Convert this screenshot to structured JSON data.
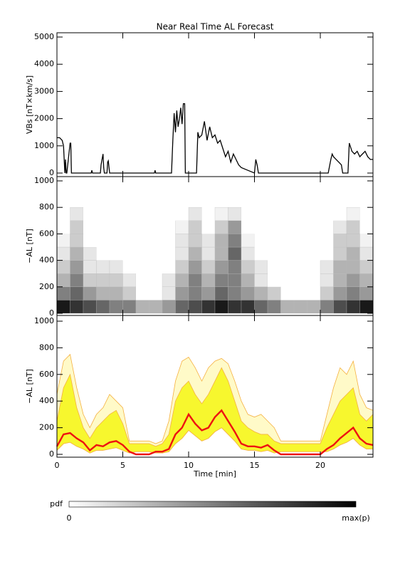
{
  "chart_data": [
    {
      "type": "line",
      "title": "Near Real Time AL Forecast",
      "ylabel": "VBs [nT×km/s]",
      "color": "#000000",
      "xlim": [
        0,
        24
      ],
      "ylim": [
        0,
        5000
      ],
      "yticks": [
        0,
        1000,
        2000,
        3000,
        4000,
        5000
      ],
      "x": [
        0,
        0.2,
        0.4,
        0.5,
        0.6,
        0.65,
        0.7,
        0.75,
        1.0,
        1.05,
        1.1,
        1.15,
        2.6,
        2.65,
        2.7,
        3.3,
        3.35,
        3.5,
        3.55,
        3.6,
        3.8,
        3.85,
        3.9,
        4.0,
        7.4,
        7.45,
        7.5,
        8.7,
        8.8,
        8.9,
        9.0,
        9.1,
        9.2,
        9.3,
        9.4,
        9.5,
        9.6,
        9.7,
        9.75,
        9.8,
        10.6,
        10.7,
        10.8,
        11.0,
        11.2,
        11.4,
        11.6,
        11.8,
        12.0,
        12.2,
        12.4,
        12.6,
        12.8,
        13.0,
        13.2,
        13.4,
        13.6,
        13.8,
        14.0,
        14.5,
        15.0,
        15.1,
        15.2,
        15.3,
        20.6,
        20.8,
        20.9,
        21.0,
        21.2,
        21.4,
        21.6,
        21.7,
        21.8,
        22.1,
        22.2,
        22.4,
        22.6,
        22.8,
        23.0,
        23.2,
        23.4,
        23.6,
        23.8,
        24.0
      ],
      "values": [
        1300,
        1300,
        1200,
        1000,
        0,
        500,
        0,
        0,
        1100,
        1100,
        0,
        0,
        0,
        100,
        0,
        0,
        300,
        700,
        200,
        0,
        0,
        400,
        450,
        0,
        0,
        100,
        0,
        0,
        1200,
        2200,
        1500,
        2300,
        1700,
        2000,
        2400,
        1800,
        2550,
        2550,
        0,
        0,
        0,
        1500,
        1300,
        1400,
        1900,
        1200,
        1700,
        1300,
        1400,
        1100,
        1200,
        900,
        600,
        800,
        400,
        700,
        500,
        300,
        200,
        100,
        0,
        500,
        300,
        0,
        0,
        500,
        700,
        600,
        500,
        400,
        300,
        0,
        0,
        0,
        1100,
        800,
        700,
        800,
        600,
        700,
        800,
        600,
        500,
        500
      ]
    },
    {
      "type": "heatmap",
      "ylabel": "−AL [nT]",
      "xlim": [
        0,
        24
      ],
      "ylim": [
        0,
        1000
      ],
      "yticks": [
        0,
        200,
        400,
        600,
        800,
        1000
      ],
      "xbins": [
        0,
        1,
        2,
        3,
        4,
        5,
        6,
        7,
        8,
        9,
        10,
        11,
        12,
        13,
        14,
        15,
        16,
        17,
        18,
        19,
        20,
        21,
        22,
        23,
        24
      ],
      "ybins": [
        0,
        100,
        200,
        300,
        400,
        500,
        600,
        700,
        800
      ],
      "pdf": [
        [
          0.9,
          0.8,
          0.7,
          0.6,
          0.5,
          0.5,
          0.3,
          0.3,
          0.4,
          0.6,
          0.7,
          0.8,
          0.9,
          0.8,
          0.8,
          0.6,
          0.5,
          0.3,
          0.3,
          0.3,
          0.5,
          0.7,
          0.8,
          0.9
        ],
        [
          0.5,
          0.6,
          0.4,
          0.3,
          0.3,
          0.2,
          0,
          0,
          0.1,
          0.4,
          0.5,
          0.4,
          0.6,
          0.5,
          0.4,
          0.3,
          0.2,
          0,
          0,
          0,
          0.2,
          0.4,
          0.5,
          0.4
        ],
        [
          0.3,
          0.5,
          0.2,
          0.2,
          0.2,
          0.1,
          0,
          0,
          0.1,
          0.3,
          0.5,
          0.3,
          0.5,
          0.5,
          0.3,
          0.1,
          0,
          0,
          0,
          0,
          0.1,
          0.3,
          0.4,
          0.3
        ],
        [
          0.2,
          0.4,
          0.1,
          0.1,
          0.1,
          0,
          0,
          0,
          0,
          0.2,
          0.4,
          0.2,
          0.4,
          0.5,
          0.2,
          0.1,
          0,
          0,
          0,
          0,
          0.1,
          0.3,
          0.3,
          0.2
        ],
        [
          0.1,
          0.3,
          0.1,
          0,
          0,
          0,
          0,
          0,
          0,
          0.1,
          0.3,
          0.1,
          0.3,
          0.6,
          0.1,
          0,
          0,
          0,
          0,
          0,
          0,
          0.2,
          0.3,
          0.1
        ],
        [
          0.05,
          0.2,
          0,
          0,
          0,
          0,
          0,
          0,
          0,
          0.1,
          0.2,
          0.1,
          0.3,
          0.5,
          0.05,
          0,
          0,
          0,
          0,
          0,
          0,
          0.2,
          0.2,
          0.05
        ],
        [
          0,
          0.2,
          0,
          0,
          0,
          0,
          0,
          0,
          0,
          0.05,
          0.2,
          0,
          0.2,
          0.4,
          0,
          0,
          0,
          0,
          0,
          0,
          0,
          0.1,
          0.2,
          0
        ],
        [
          0,
          0.1,
          0,
          0,
          0,
          0,
          0,
          0,
          0,
          0,
          0.1,
          0,
          0.05,
          0.1,
          0,
          0,
          0,
          0,
          0,
          0,
          0,
          0,
          0.05,
          0
        ]
      ],
      "colorbar": {
        "label": "pdf",
        "min_label": "0",
        "max_label": "max(p)"
      }
    },
    {
      "type": "area",
      "ylabel": "−AL [nT]",
      "xlabel": "Time [min]",
      "xlim": [
        0,
        24
      ],
      "ylim": [
        0,
        1000
      ],
      "yticks": [
        0,
        200,
        400,
        600,
        800,
        1000
      ],
      "xticks": [
        0,
        5,
        10,
        15,
        20
      ],
      "x": [
        0,
        0.5,
        1,
        1.5,
        2,
        2.5,
        3,
        3.5,
        4,
        4.5,
        5,
        5.5,
        6,
        6.5,
        7,
        7.5,
        8,
        8.5,
        9,
        9.5,
        10,
        10.5,
        11,
        11.5,
        12,
        12.5,
        13,
        13.5,
        14,
        14.5,
        15,
        15.5,
        16,
        16.5,
        17,
        17.5,
        18,
        18.5,
        19,
        19.5,
        20,
        20.5,
        21,
        21.5,
        22,
        22.5,
        23,
        23.5,
        24
      ],
      "lower": [
        30,
        80,
        90,
        60,
        40,
        10,
        30,
        30,
        40,
        50,
        30,
        10,
        20,
        20,
        20,
        10,
        10,
        20,
        80,
        120,
        180,
        140,
        100,
        120,
        170,
        200,
        150,
        100,
        40,
        30,
        30,
        20,
        30,
        10,
        20,
        20,
        20,
        20,
        20,
        20,
        20,
        20,
        40,
        70,
        90,
        120,
        70,
        40,
        40
      ],
      "series": [
        {
          "color": "#f5b041",
          "fill": "#fffac8",
          "values": [
            450,
            700,
            750,
            500,
            300,
            200,
            300,
            350,
            450,
            400,
            350,
            100,
            100,
            100,
            100,
            80,
            100,
            250,
            550,
            700,
            730,
            650,
            550,
            650,
            700,
            720,
            680,
            550,
            400,
            300,
            280,
            300,
            250,
            200,
            100,
            100,
            100,
            100,
            100,
            100,
            100,
            300,
            500,
            650,
            600,
            700,
            450,
            350,
            330
          ]
        },
        {
          "color": "#f5b041",
          "fill": "#f7f72e",
          "values": [
            250,
            500,
            600,
            350,
            200,
            120,
            200,
            250,
            300,
            330,
            230,
            80,
            80,
            80,
            80,
            60,
            80,
            150,
            400,
            500,
            550,
            450,
            380,
            450,
            550,
            650,
            550,
            400,
            250,
            200,
            170,
            150,
            150,
            100,
            80,
            80,
            80,
            80,
            80,
            80,
            80,
            200,
            300,
            400,
            450,
            500,
            300,
            250,
            300
          ]
        },
        {
          "color": "#ee1111",
          "values": [
            60,
            150,
            160,
            120,
            90,
            30,
            70,
            60,
            90,
            100,
            70,
            20,
            0,
            0,
            0,
            20,
            20,
            40,
            150,
            200,
            300,
            230,
            180,
            200,
            280,
            330,
            250,
            170,
            80,
            60,
            60,
            50,
            70,
            30,
            0,
            0,
            0,
            0,
            0,
            0,
            0,
            40,
            70,
            120,
            160,
            200,
            120,
            80,
            70
          ]
        }
      ]
    }
  ]
}
